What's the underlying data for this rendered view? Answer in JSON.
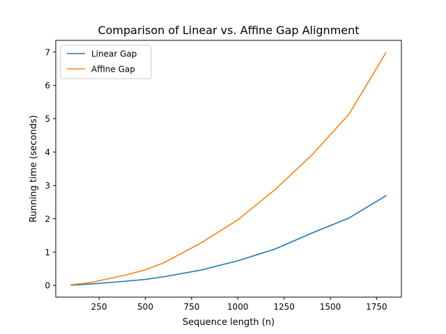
{
  "chart_data": {
    "type": "line",
    "title": "Comparison of Linear vs. Affine Gap Alignment",
    "xlabel": "Sequence length (n)",
    "ylabel": "Running time (seconds)",
    "xlim": [
      16,
      1884
    ],
    "ylim": [
      -0.35,
      7.35
    ],
    "xticks": [
      250,
      500,
      750,
      1000,
      1250,
      1500,
      1750
    ],
    "yticks": [
      0,
      1,
      2,
      3,
      4,
      5,
      6,
      7
    ],
    "x": [
      100,
      200,
      400,
      500,
      600,
      800,
      1000,
      1200,
      1400,
      1600,
      1800
    ],
    "series": [
      {
        "name": "Linear Gap",
        "color": "#1f77b4",
        "values": [
          0.01,
          0.04,
          0.13,
          0.18,
          0.26,
          0.46,
          0.74,
          1.09,
          1.57,
          2.02,
          2.69
        ]
      },
      {
        "name": "Affine Gap",
        "color": "#ff7f0e",
        "values": [
          0.02,
          0.08,
          0.32,
          0.47,
          0.68,
          1.27,
          1.97,
          2.87,
          3.91,
          5.13,
          6.98
        ]
      }
    ],
    "legend": "top-left",
    "grid": false
  }
}
